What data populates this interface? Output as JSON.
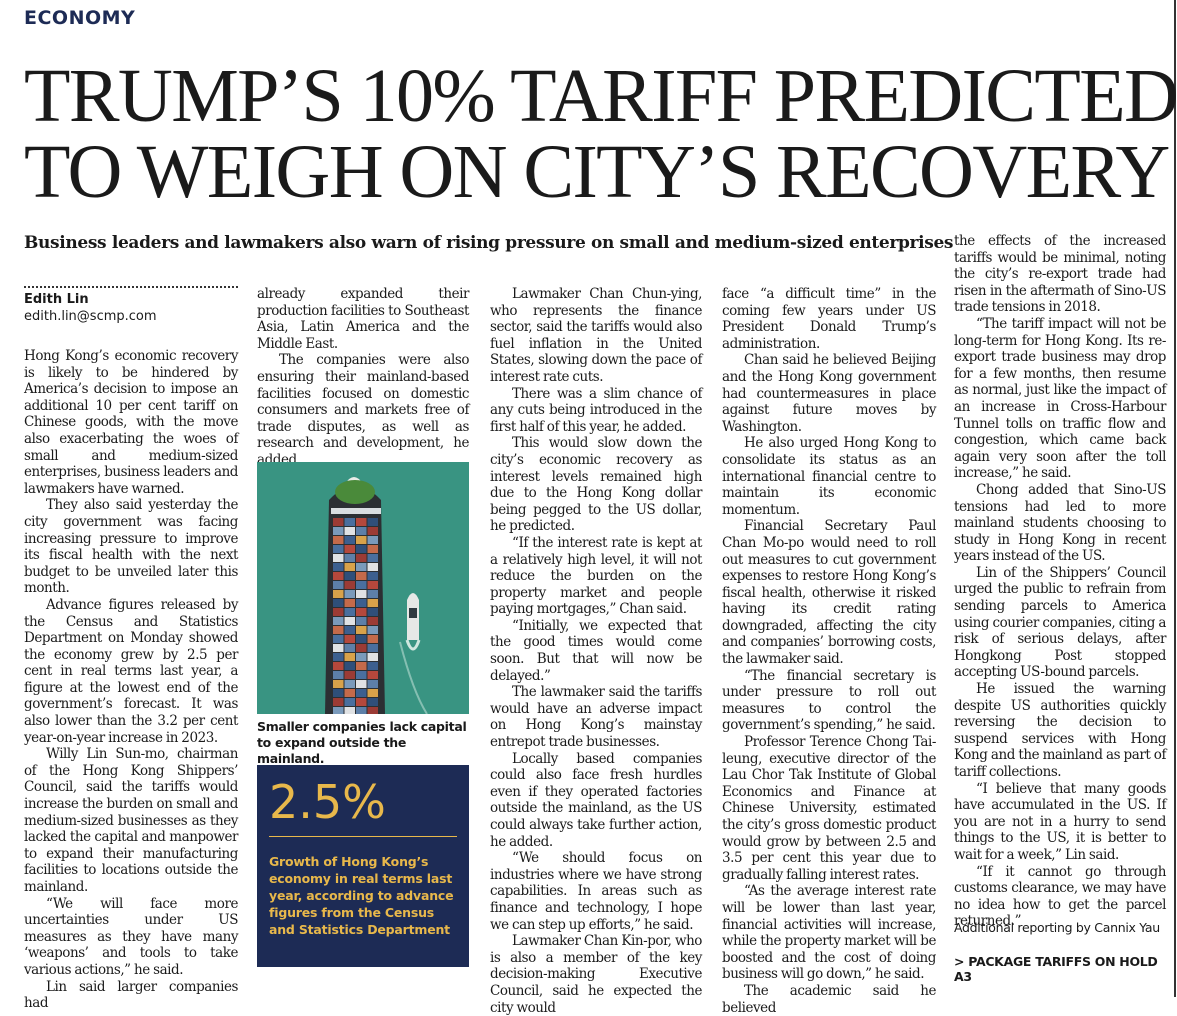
{
  "section": "ECONOMY",
  "headline": {
    "line1": "TRUMP’S 10% TARIFF PREDICTED",
    "line2": "TO WEIGH ON CITY’S RECOVERY"
  },
  "standfirst": "Business leaders and lawmakers also warn of rising pressure on small and medium-sized enterprises",
  "byline": {
    "name": "Edith Lin",
    "email": "edith.lin@scmp.com"
  },
  "columns": {
    "col1": [
      "Hong Kong’s economic recovery is likely to be hindered by America’s decision to impose an additional 10 per cent tariff on Chinese goods, with the move also exacerbating the woes of small and medium-sized enterprises, business leaders and lawmakers have warned.",
      "They also said yesterday the city government was facing increasing pressure to improve its fiscal health with the next budget to be unveiled later this month.",
      "Advance figures released by the Census and Statistics Department on Monday showed the economy grew by 2.5 per cent in real terms last year, a figure at the lowest end of the government’s forecast. It was also lower than the 3.2 per cent year-on-year increase in 2023.",
      "Willy Lin Sun-mo, chairman of the Hong Kong Shippers’ Council, said the tariffs would increase the burden on small and medium-sized businesses as they lacked the capital and manpower to expand their manufacturing facilities to locations outside the mainland.",
      "“We will face more uncertainties under US measures as they have many ‘weapons’ and tools to take various actions,” he said.",
      "Lin said larger companies had"
    ],
    "col2": [
      "already expanded their production facilities to Southeast Asia, Latin America and the Middle East.",
      "The companies were also ensuring their mainland-based facilities focused on domestic consumers and markets free of trade disputes, as well as research and development, he added."
    ],
    "col3": [
      "Lawmaker Chan Chun-ying, who represents the finance sector, said the tariffs would also fuel inflation in the United States, slowing down the pace of interest rate cuts.",
      "There was a slim chance of any cuts being introduced in the first half of this year, he added.",
      "This would slow down the city’s economic recovery as interest levels remained high due to the Hong Kong dollar being pegged to the US dollar, he predicted.",
      "“If the interest rate is kept at a relatively high level, it will not reduce the burden on the property market and people paying mortgages,” Chan said.",
      "“Initially, we expected that the good times would come soon. But that will now be delayed.”",
      "The lawmaker said the tariffs would have an adverse impact on Hong Kong’s mainstay entrepot trade businesses.",
      "Locally based companies could also face fresh hurdles even if they operated factories outside the mainland, as the US could always take further action, he added.",
      "“We should focus on industries where we have strong capabilities. In areas such as finance and technology, I hope we can step up efforts,” he said.",
      "Lawmaker Chan Kin-por, who is also a member of the key decision-making Executive Council, said he expected the city would"
    ],
    "col4": [
      "face “a difficult time” in the coming few years under US President Donald Trump’s administration.",
      "Chan said he believed Beijing and the Hong Kong government had countermeasures in place against future moves by Washington.",
      "He also urged Hong Kong to consolidate its status as an international financial centre to maintain its economic momentum.",
      "Financial Secretary Paul Chan Mo-po would need to roll out measures to cut government expenses to restore Hong Kong’s fiscal health, otherwise it risked having its credit rating downgraded, affecting the city and companies’ borrowing costs, the lawmaker said.",
      "“The financial secretary is under pressure to roll out measures to control the government’s spending,” he said.",
      "Professor Terence Chong Tai-leung, executive director of the Lau Chor Tak Institute of Global Economics and Finance at Chinese University, estimated the city’s gross domestic product would grow by between 2.5 and 3.5 per cent this year due to gradually falling interest rates.",
      "“As the average interest rate will be lower than last year, financial activities will increase, while the property market will be boosted and the cost of doing business will go down,” he said.",
      "The academic said he believed"
    ],
    "col5": [
      "the effects of the increased tariffs would be minimal, noting the city’s re-export trade had risen in the aftermath of Sino-US trade tensions in 2018.",
      "“The tariff impact will not be long-term for Hong Kong. Its re-export trade business may drop for a few months, then resume as normal, just like the impact of an increase in Cross-Harbour Tunnel tolls on traffic flow and congestion, which came back again very soon after the toll increase,” he said.",
      "Chong added that Sino-US tensions had led to more mainland students choosing to study in Hong Kong in recent years instead of the US.",
      "Lin of the Shippers’ Council urged the public to refrain from sending parcels to America using courier companies, citing a risk of serious delays, after Hongkong Post stopped accepting US-bound parcels.",
      "He issued the warning despite US authorities quickly reversing the decision to suspend services with Hong Kong and the mainland as part of tariff collections.",
      "“I believe that many goods have accumulated in the US. If you are not in a hurry to send things to the US, it is better to wait for a week,” Lin said.",
      "“If it cannot go through customs clearance, we may have no idea how to get the parcel returned.”"
    ]
  },
  "photo_caption": "Smaller companies lack capital to expand outside the mainland.",
  "factbox": {
    "figure": "2.5%",
    "description": "Growth of Hong Kong’s economy in real terms last year, according to advance figures from the Census and Statistics Department"
  },
  "credit": "Additional reporting by Cannix Yau",
  "pointer": "> PACKAGE TARIFFS ON HOLD A3",
  "colors": {
    "section": "#1d2b55",
    "factbox_bg": "#1d2b55",
    "factbox_accent": "#e8b84b",
    "sea": "#3c9a86"
  }
}
